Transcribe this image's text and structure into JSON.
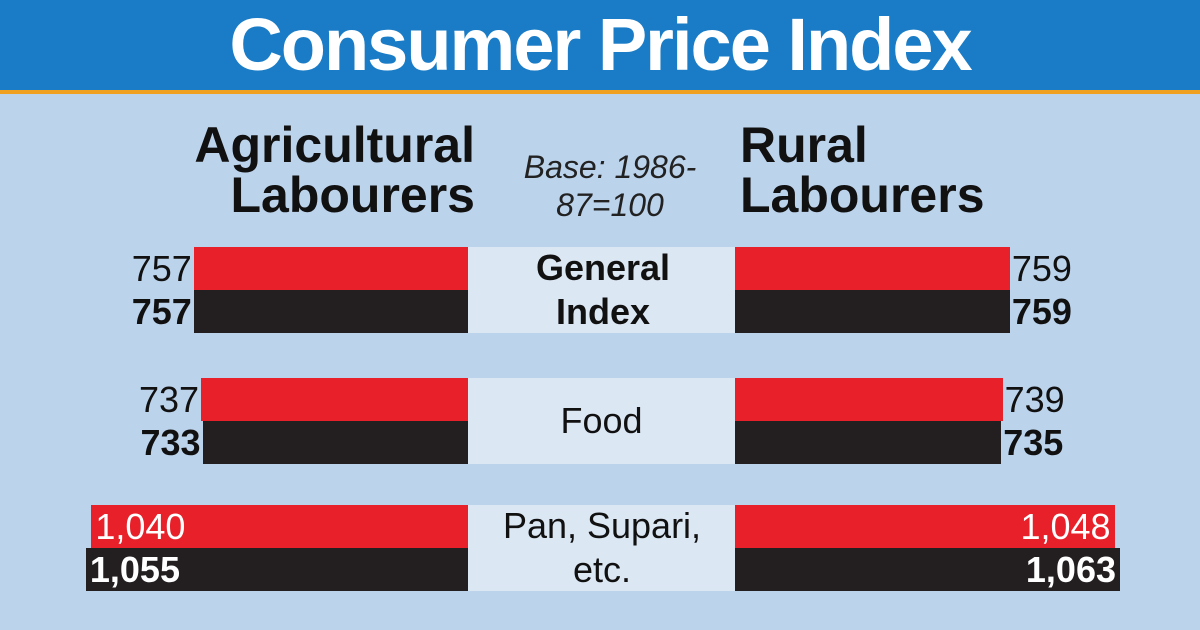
{
  "chart_data": {
    "type": "butterfly-bar",
    "title": "Consumer Price Index",
    "note": "Base: 1986-87=100",
    "categories": [
      "General Index",
      "Food",
      "Pan, Supari, etc."
    ],
    "left": {
      "title": "Agricultural Labourers",
      "series": [
        {
          "color": "#e8202a",
          "values": [
            757,
            737,
            1040
          ],
          "value_labels": [
            "757",
            "737",
            "1,040"
          ]
        },
        {
          "color": "#231f20",
          "values": [
            757,
            733,
            1055
          ],
          "value_labels": [
            "757",
            "733",
            "1,055"
          ]
        }
      ]
    },
    "right": {
      "title": "Rural Labourers",
      "series": [
        {
          "color": "#e8202a",
          "values": [
            759,
            739,
            1048
          ],
          "value_labels": [
            "759",
            "739",
            "1,048"
          ]
        },
        {
          "color": "#231f20",
          "values": [
            759,
            735,
            1063
          ],
          "value_labels": [
            "759",
            "735",
            "1,063"
          ]
        }
      ]
    }
  }
}
